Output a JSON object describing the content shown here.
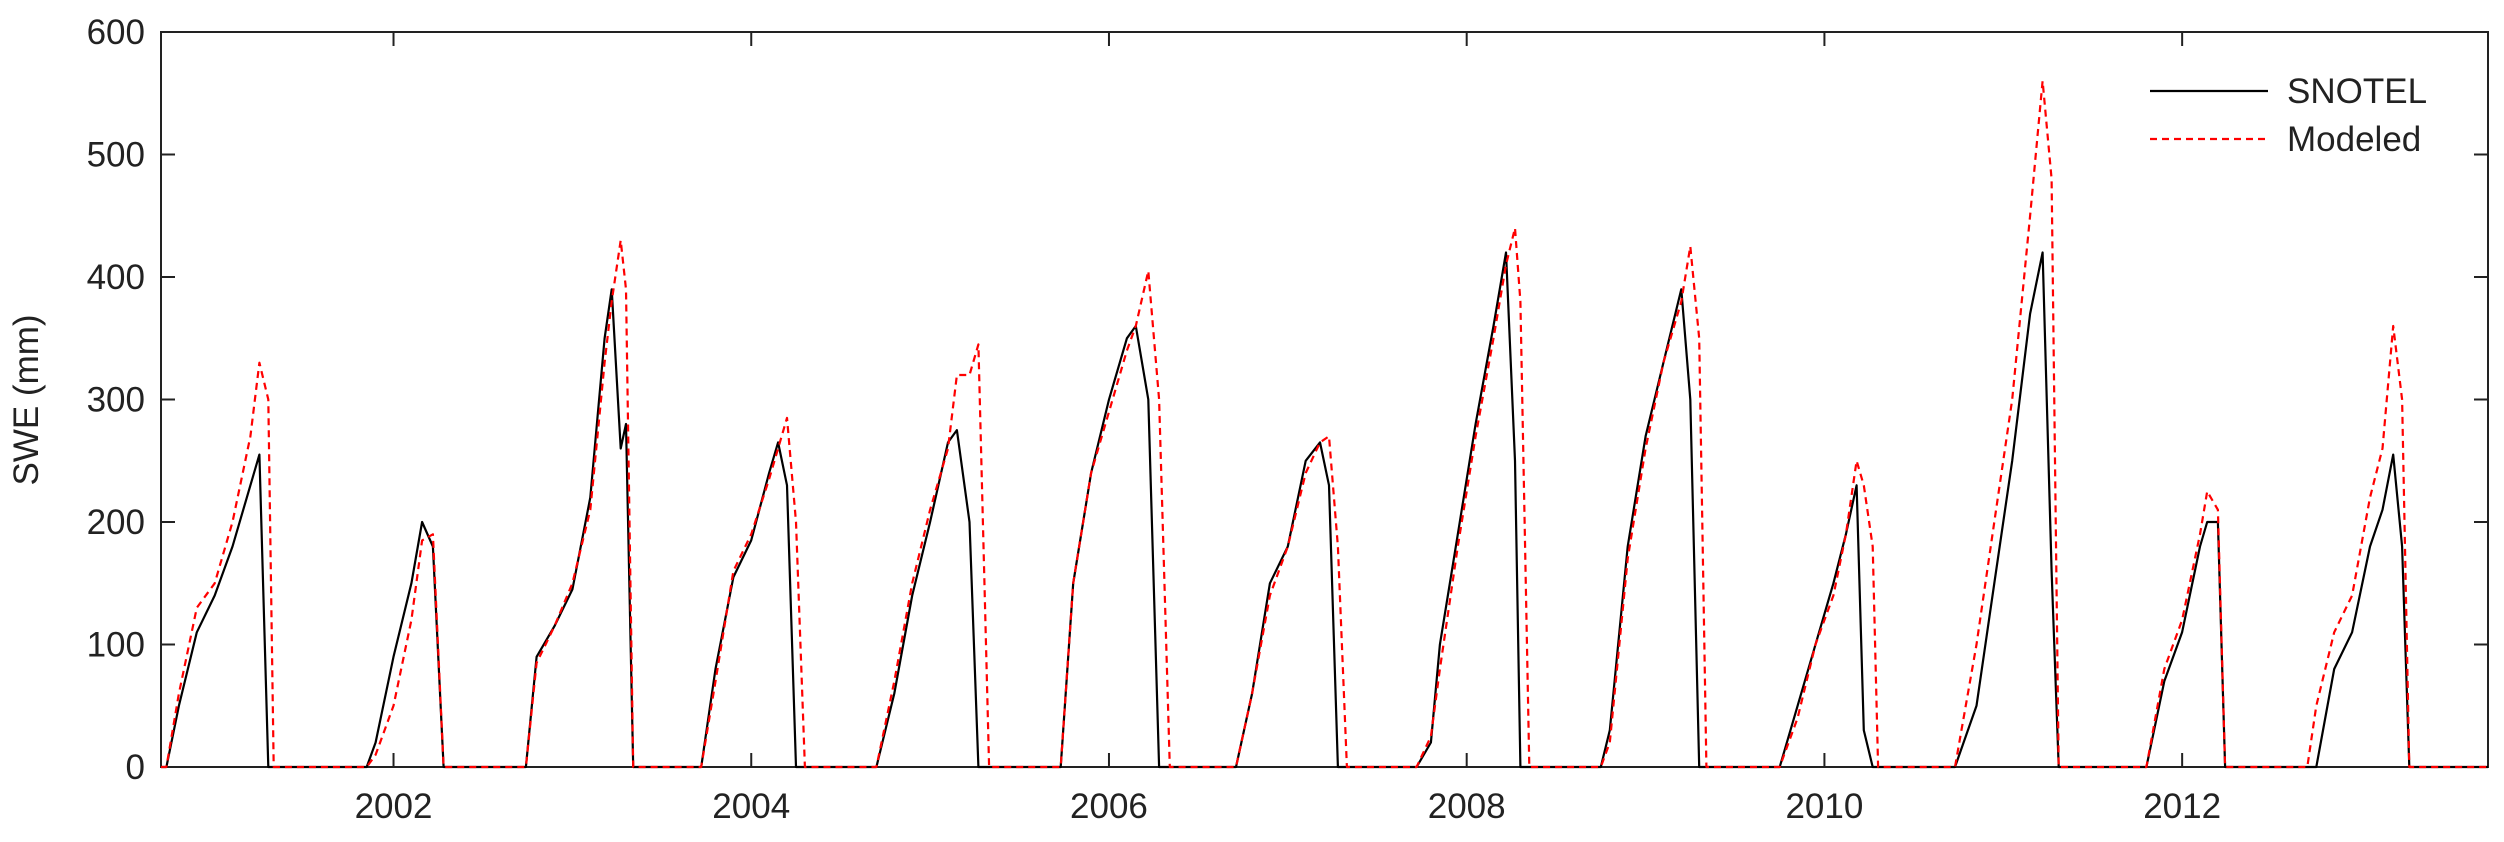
{
  "chart_data": {
    "type": "line",
    "y_label": "SWE (mm)",
    "xlim": [
      2000.7,
      2013.71
    ],
    "xticks": [
      2002,
      2004,
      2006,
      2008,
      2010,
      2012
    ],
    "ylim": [
      0,
      600
    ],
    "yticks": [
      0,
      100,
      200,
      300,
      400,
      500,
      600
    ],
    "legend": "upper right",
    "x": [
      2000.7,
      2000.73,
      2000.8,
      2000.9,
      2001.0,
      2001.1,
      2001.2,
      2001.25,
      2001.3,
      2001.33,
      2001.85,
      2001.9,
      2002.0,
      2002.1,
      2002.16,
      2002.22,
      2002.28,
      2002.74,
      2002.8,
      2002.9,
      2003.0,
      2003.1,
      2003.18,
      2003.22,
      2003.27,
      2003.3,
      2003.34,
      2003.72,
      2003.8,
      2003.9,
      2004.0,
      2004.1,
      2004.15,
      2004.2,
      2004.25,
      2004.3,
      2004.7,
      2004.8,
      2004.9,
      2005.0,
      2005.1,
      2005.15,
      2005.22,
      2005.27,
      2005.33,
      2005.73,
      2005.8,
      2005.9,
      2006.0,
      2006.1,
      2006.15,
      2006.22,
      2006.28,
      2006.34,
      2006.71,
      2006.8,
      2006.9,
      2007.0,
      2007.1,
      2007.18,
      2007.23,
      2007.28,
      2007.33,
      2007.72,
      2007.8,
      2007.85,
      2007.95,
      2008.05,
      2008.15,
      2008.22,
      2008.27,
      2008.3,
      2008.35,
      2008.75,
      2008.8,
      2008.9,
      2009.0,
      2009.1,
      2009.2,
      2009.25,
      2009.3,
      2009.34,
      2009.75,
      2009.85,
      2009.95,
      2010.05,
      2010.12,
      2010.18,
      2010.22,
      2010.27,
      2010.3,
      2010.73,
      2010.85,
      2010.95,
      2011.05,
      2011.15,
      2011.22,
      2011.27,
      2011.31,
      2011.8,
      2011.9,
      2012.0,
      2012.1,
      2012.14,
      2012.2,
      2012.24,
      2012.7,
      2012.75,
      2012.85,
      2012.95,
      2013.05,
      2013.12,
      2013.18,
      2013.23,
      2013.27,
      2013.71
    ],
    "series": [
      {
        "name": "SNOTEL",
        "color": "#000000",
        "linestyle": "solid",
        "values": [
          0,
          0,
          50,
          110,
          140,
          180,
          230,
          255,
          0,
          0,
          0,
          20,
          90,
          150,
          200,
          180,
          0,
          0,
          90,
          115,
          145,
          220,
          350,
          390,
          260,
          280,
          0,
          0,
          80,
          155,
          185,
          240,
          265,
          230,
          0,
          0,
          0,
          60,
          140,
          200,
          265,
          275,
          200,
          0,
          0,
          0,
          150,
          240,
          300,
          350,
          360,
          300,
          0,
          0,
          0,
          60,
          150,
          180,
          250,
          265,
          230,
          0,
          0,
          0,
          20,
          100,
          190,
          280,
          360,
          420,
          250,
          0,
          0,
          0,
          30,
          180,
          270,
          330,
          390,
          300,
          0,
          0,
          0,
          50,
          100,
          150,
          190,
          230,
          30,
          0,
          0,
          0,
          50,
          150,
          250,
          370,
          420,
          160,
          0,
          0,
          70,
          110,
          180,
          200,
          200,
          0,
          0,
          0,
          80,
          110,
          180,
          210,
          255,
          180,
          0,
          0
        ]
      },
      {
        "name": "Modeled",
        "color": "#ff0000",
        "linestyle": "dashed",
        "values": [
          0,
          0,
          60,
          130,
          150,
          200,
          270,
          330,
          300,
          0,
          0,
          10,
          50,
          120,
          185,
          190,
          0,
          0,
          85,
          115,
          150,
          210,
          330,
          380,
          430,
          390,
          0,
          0,
          70,
          160,
          190,
          235,
          260,
          285,
          200,
          0,
          0,
          70,
          150,
          210,
          260,
          320,
          320,
          345,
          0,
          0,
          150,
          240,
          290,
          340,
          360,
          405,
          300,
          0,
          0,
          60,
          140,
          180,
          240,
          265,
          270,
          180,
          0,
          0,
          25,
          80,
          180,
          270,
          350,
          410,
          440,
          380,
          0,
          0,
          20,
          170,
          260,
          330,
          380,
          425,
          350,
          0,
          0,
          40,
          100,
          140,
          190,
          250,
          230,
          180,
          0,
          0,
          100,
          200,
          300,
          450,
          560,
          480,
          0,
          0,
          80,
          120,
          190,
          225,
          210,
          0,
          0,
          50,
          110,
          140,
          220,
          260,
          360,
          300,
          0,
          0
        ]
      }
    ]
  }
}
